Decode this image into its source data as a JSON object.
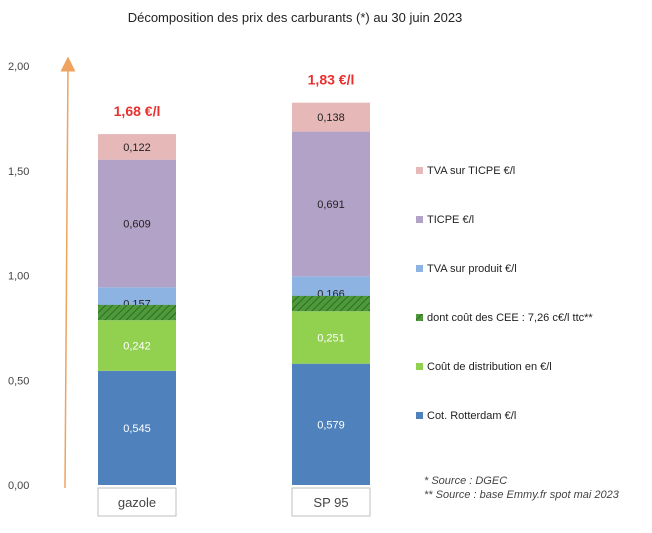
{
  "chart_data": {
    "type": "bar",
    "stacked": true,
    "title": "Décomposition des prix des carburants (*) au 30 juin 2023",
    "categories": [
      "gazole",
      "SP 95"
    ],
    "totals": [
      "1,68 €/l",
      "1,83 €/l"
    ],
    "ylim": [
      0,
      2
    ],
    "yticks": [
      "0,00",
      "0,50",
      "1,00",
      "1,50",
      "2,00"
    ],
    "grid": false,
    "legend_position": "right",
    "series": [
      {
        "name": "Cot. Rotterdam €/l",
        "values": [
          0.545,
          0.579
        ],
        "labels": [
          "0,545",
          "0,579"
        ],
        "color": "#4f81bd",
        "text_color": "#ffffff"
      },
      {
        "name": "Coût de distribution en €/l",
        "values": [
          0.242,
          0.251
        ],
        "labels": [
          "0,242",
          "0,251"
        ],
        "color": "#92d050",
        "text_color": "#ffffff"
      },
      {
        "name": "dont coût des CEE : 7,26 c€/l ttc**",
        "values": [
          0.0726,
          0.0726
        ],
        "labels": [
          "",
          ""
        ],
        "color": "#4e9a3a",
        "pattern": "hatch",
        "overlay": true,
        "text_color": "#ffffff"
      },
      {
        "name": "TVA sur produit €/l",
        "values": [
          0.157,
          0.166
        ],
        "labels": [
          "0,157",
          "0,166"
        ],
        "color": "#8db3e2",
        "text_color": "#222222"
      },
      {
        "name": "TICPE €/l",
        "values": [
          0.609,
          0.691
        ],
        "labels": [
          "0,609",
          "0,691"
        ],
        "color": "#b3a2c7",
        "text_color": "#222222"
      },
      {
        "name": "TVA sur TICPE €/l",
        "values": [
          0.122,
          0.138
        ],
        "labels": [
          "0,122",
          "0,138"
        ],
        "color": "#e6b9b8",
        "text_color": "#222222"
      }
    ],
    "legend_order": [
      5,
      4,
      3,
      2,
      1,
      0
    ],
    "notes": [
      "* Source : DGEC",
      "** Source : base Emmy.fr spot mai 2023"
    ],
    "colors": {
      "axis_arrow": "#f0a35e",
      "total_text": "#e8312f"
    }
  }
}
